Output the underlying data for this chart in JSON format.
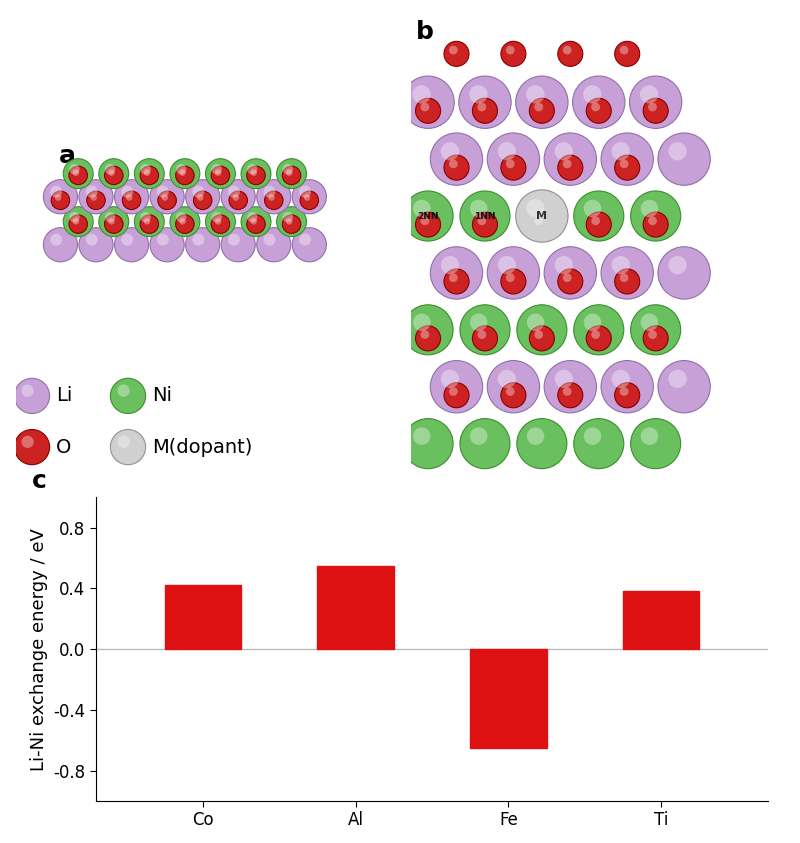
{
  "bar_categories": [
    "Co",
    "Al",
    "Fe",
    "Ti"
  ],
  "bar_values": [
    0.42,
    0.55,
    -0.65,
    0.38
  ],
  "bar_color": "#dd1111",
  "ylim": [
    -1.0,
    1.0
  ],
  "yticks": [
    -0.8,
    -0.4,
    0.0,
    0.4,
    0.8
  ],
  "ylabel": "Li-Ni exchange energy / eV",
  "panel_c_label": "c",
  "panel_a_label": "a",
  "panel_b_label": "b",
  "li_color": "#c8a0d8",
  "li_edge": "#9070a8",
  "ni_color": "#6abf5e",
  "ni_edge": "#3a8f2e",
  "o_color": "#cc2222",
  "o_edge": "#880000",
  "m_color": "#d0d0d0",
  "m_edge": "#909090",
  "bg_color": "#ffffff",
  "grid_color": "#bbbbbb",
  "bar_width": 0.5,
  "font_size_label": 13,
  "font_size_tick": 12,
  "font_size_panel": 18
}
